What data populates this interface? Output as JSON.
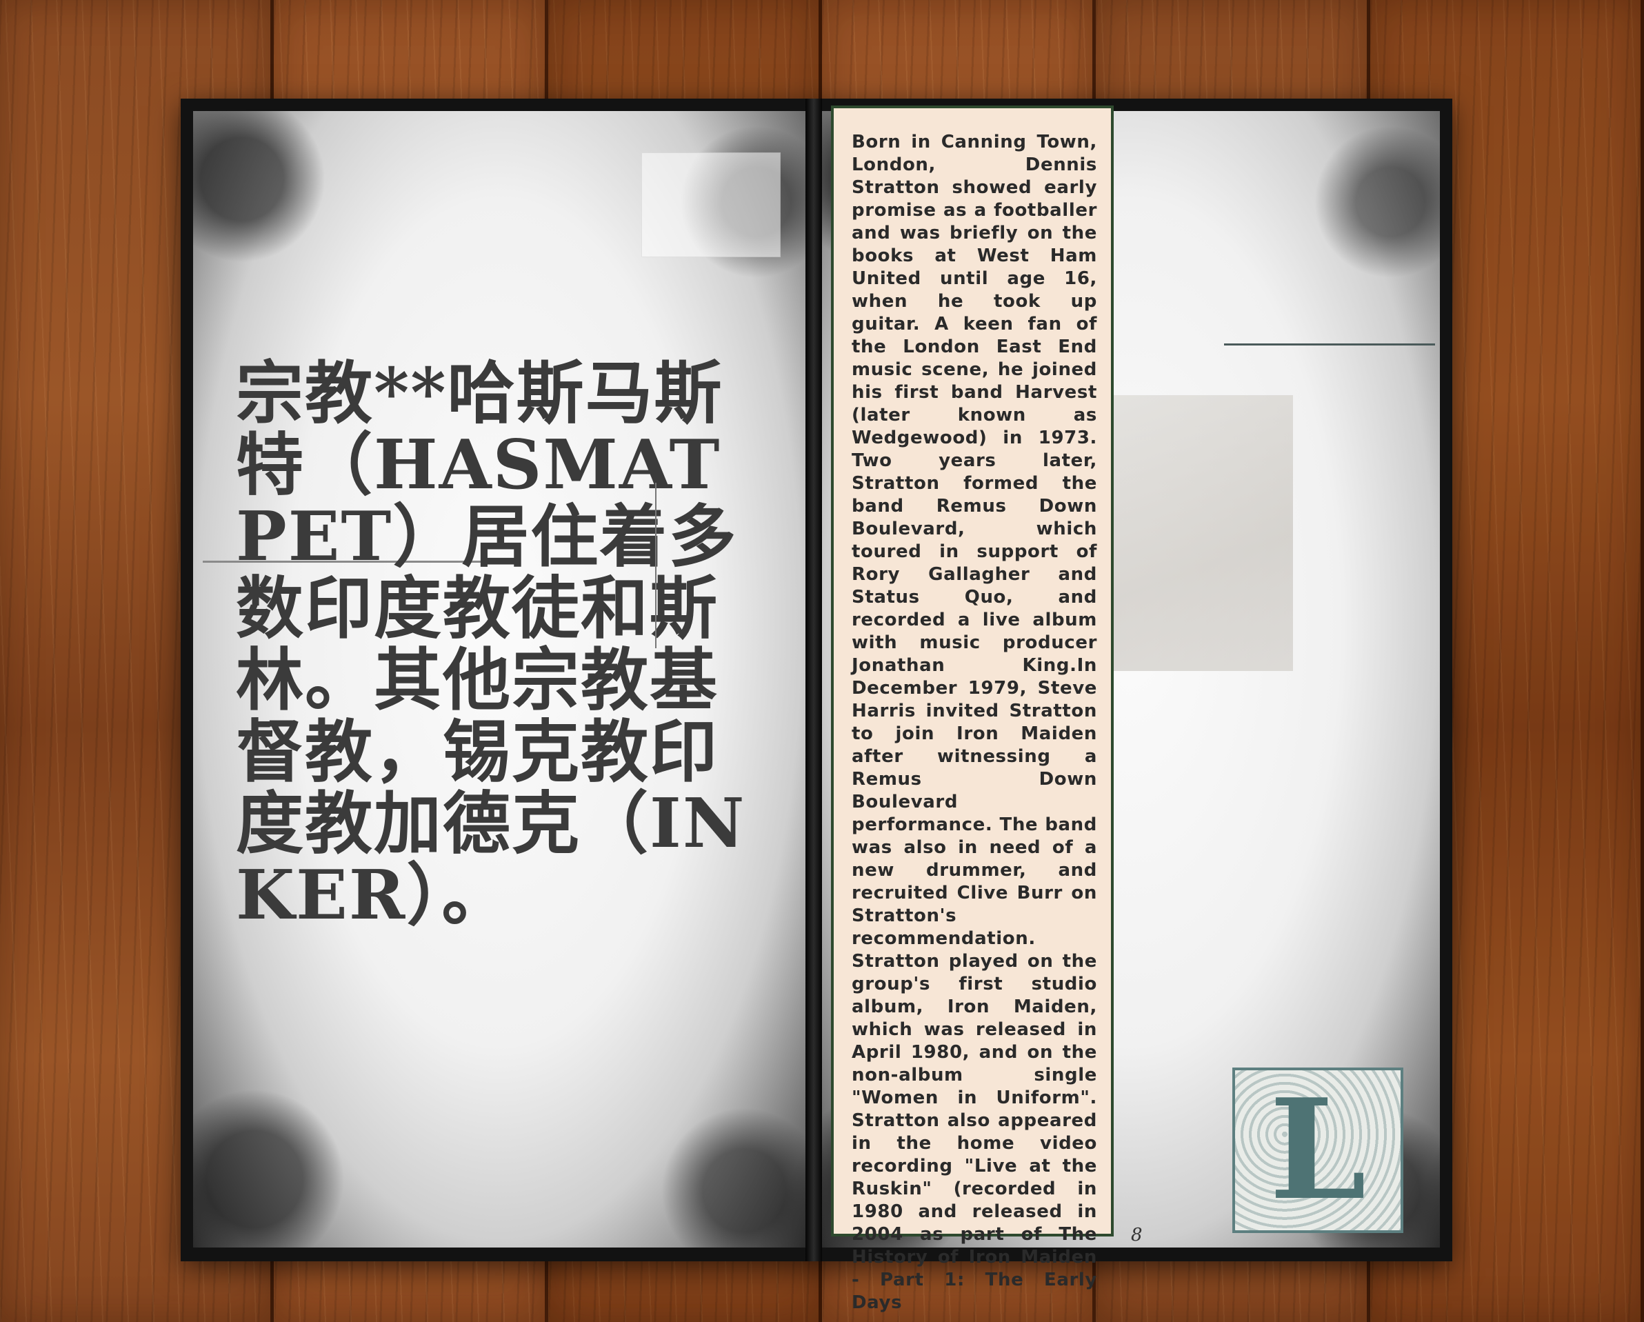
{
  "left_page": {
    "text": "宗教**哈斯马斯特（HASMAT PET）居住着多数印度教徒和斯林。其他宗教基督教，锡克教印度教加德克（INKER）。"
  },
  "right_page": {
    "bio_text": "Born in Canning Town, London, Dennis Stratton showed early promise as a footballer and was briefly on the books at West Ham United until age 16, when he took up guitar. A keen fan of the London East End music scene, he joined his first band Harvest (later known as Wedgewood) in 1973. Two years later, Stratton formed the band Remus Down Boulevard, which toured in support of Rory Gallagher and Status Quo, and recorded a live album with music producer Jonathan King.In December 1979, Steve Harris invited Stratton to join Iron Maiden after witnessing a Remus Down Boulevard performance. The band was also in need of a new drummer, and recruited Clive Burr on Stratton's recommendation. Stratton played on the group's first studio album, Iron Maiden, which was released in April 1980, and on the non-album single \"Women in Uniform\". Stratton also appeared in the home video recording \"Live at the Ruskin\" (recorded in 1980 and released in 2004 as part of The History of Iron Maiden - Part 1: The Early Days",
    "page_number": "8",
    "initial_letter": "L"
  },
  "colors": {
    "bio_box_bg": "#f7e6d6",
    "bio_box_border": "#2e4a2e",
    "initial_color": "#4e7374"
  }
}
